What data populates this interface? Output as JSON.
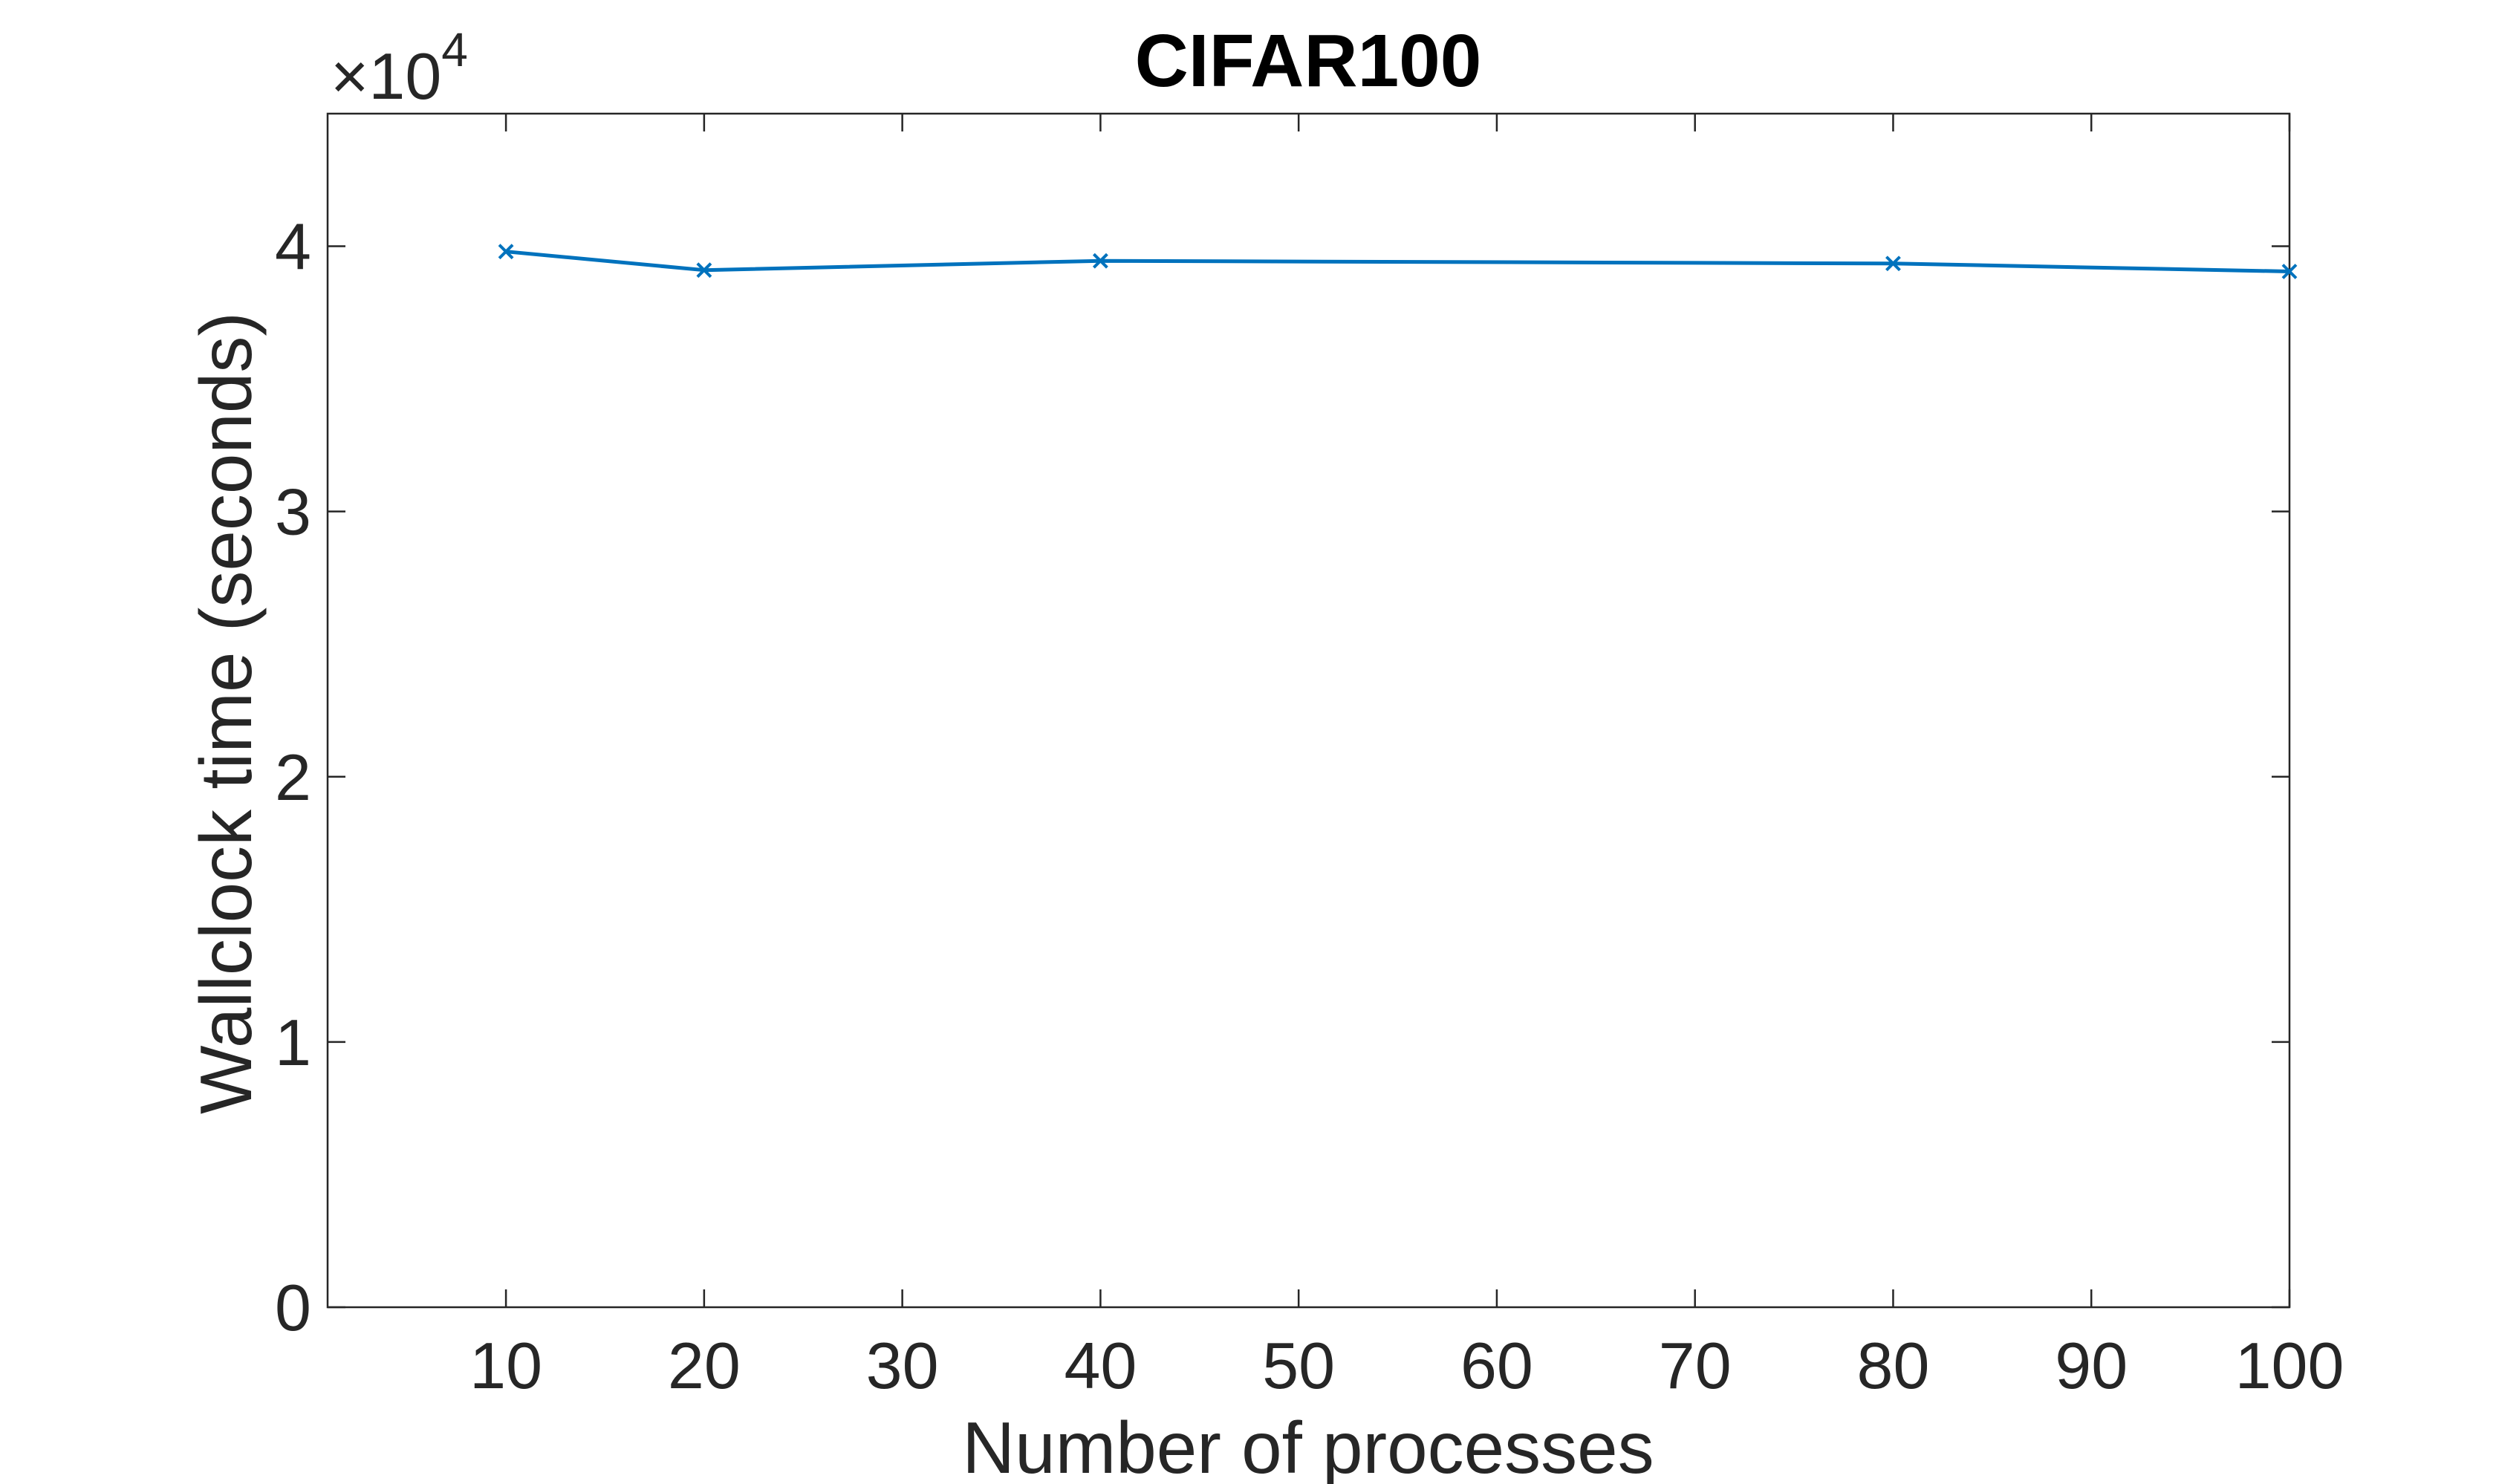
{
  "chart_data": {
    "type": "line",
    "title": "CIFAR100",
    "xlabel": "Number of processes",
    "ylabel": "Wallclock time (seconds)",
    "y_exponent_label": {
      "prefix": "×10",
      "power": "4"
    },
    "xlim": [
      1,
      100
    ],
    "ylim": [
      0,
      45000
    ],
    "x_ticks": [
      10,
      20,
      30,
      40,
      50,
      60,
      70,
      80,
      90,
      100
    ],
    "x_tick_labels": [
      "10",
      "20",
      "30",
      "40",
      "50",
      "60",
      "70",
      "80",
      "90",
      "100"
    ],
    "y_ticks": [
      0,
      10000,
      20000,
      30000,
      40000
    ],
    "y_tick_labels": [
      "0",
      "1",
      "2",
      "3",
      "4"
    ],
    "grid": false,
    "box": true,
    "series": [
      {
        "color": "#0072BD",
        "marker": "x",
        "x": [
          10,
          20,
          40,
          80,
          100
        ],
        "y": [
          39800,
          39100,
          39450,
          39350,
          39050
        ]
      }
    ]
  }
}
